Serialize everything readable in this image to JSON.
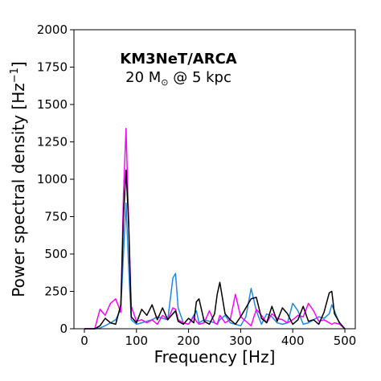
{
  "chart_data": {
    "type": "line",
    "xlabel": "Frequency [Hz]",
    "ylabel": "Power spectral density [Hz",
    "ylabel_sup": "−1",
    "ylabel_close": "]",
    "xlim": [
      -20,
      520
    ],
    "ylim": [
      0,
      2000
    ],
    "xticks": [
      0,
      100,
      200,
      300,
      400,
      500
    ],
    "yticks": [
      0,
      250,
      500,
      750,
      1000,
      1250,
      1500,
      1750,
      2000
    ],
    "grid": false,
    "annotation": {
      "line1": "KM3NeT/ARCA",
      "line2_prefix": "20 M",
      "line2_symbol": "⊙",
      "line2_suffix": " @ 5 kpc"
    },
    "x": [
      0,
      10,
      20,
      30,
      40,
      50,
      60,
      70,
      75,
      80,
      85,
      90,
      100,
      110,
      120,
      130,
      140,
      150,
      160,
      170,
      175,
      180,
      190,
      200,
      210,
      215,
      220,
      230,
      240,
      250,
      255,
      260,
      270,
      280,
      290,
      300,
      310,
      320,
      330,
      340,
      350,
      360,
      370,
      380,
      390,
      400,
      410,
      420,
      430,
      440,
      450,
      460,
      470,
      475,
      480,
      490,
      500
    ],
    "series": [
      {
        "color": "#1e88e5",
        "values": [
          0,
          0,
          0,
          5,
          20,
          40,
          60,
          130,
          500,
          840,
          400,
          60,
          30,
          40,
          50,
          60,
          80,
          70,
          60,
          340,
          370,
          140,
          40,
          30,
          90,
          120,
          40,
          60,
          50,
          40,
          30,
          60,
          90,
          40,
          30,
          20,
          80,
          270,
          120,
          30,
          100,
          80,
          40,
          30,
          40,
          170,
          120,
          30,
          40,
          60,
          80,
          70,
          100,
          160,
          120,
          30,
          0
        ]
      },
      {
        "color": "#ff00ff",
        "values": [
          0,
          0,
          0,
          130,
          90,
          170,
          200,
          110,
          900,
          1340,
          700,
          150,
          50,
          60,
          40,
          60,
          30,
          90,
          60,
          140,
          130,
          60,
          40,
          30,
          80,
          50,
          30,
          40,
          120,
          40,
          30,
          90,
          40,
          60,
          230,
          80,
          50,
          20,
          130,
          90,
          40,
          100,
          70,
          60,
          40,
          60,
          90,
          80,
          170,
          120,
          50,
          60,
          40,
          30,
          40,
          30,
          0
        ]
      },
      {
        "color": "#000000",
        "values": [
          0,
          0,
          0,
          20,
          70,
          40,
          30,
          160,
          750,
          1060,
          700,
          80,
          40,
          130,
          90,
          160,
          60,
          140,
          60,
          100,
          120,
          50,
          30,
          70,
          40,
          180,
          200,
          50,
          30,
          100,
          230,
          310,
          100,
          60,
          30,
          80,
          140,
          200,
          210,
          70,
          40,
          150,
          50,
          140,
          100,
          30,
          60,
          150,
          50,
          60,
          30,
          110,
          240,
          250,
          100,
          40,
          0
        ]
      }
    ]
  }
}
